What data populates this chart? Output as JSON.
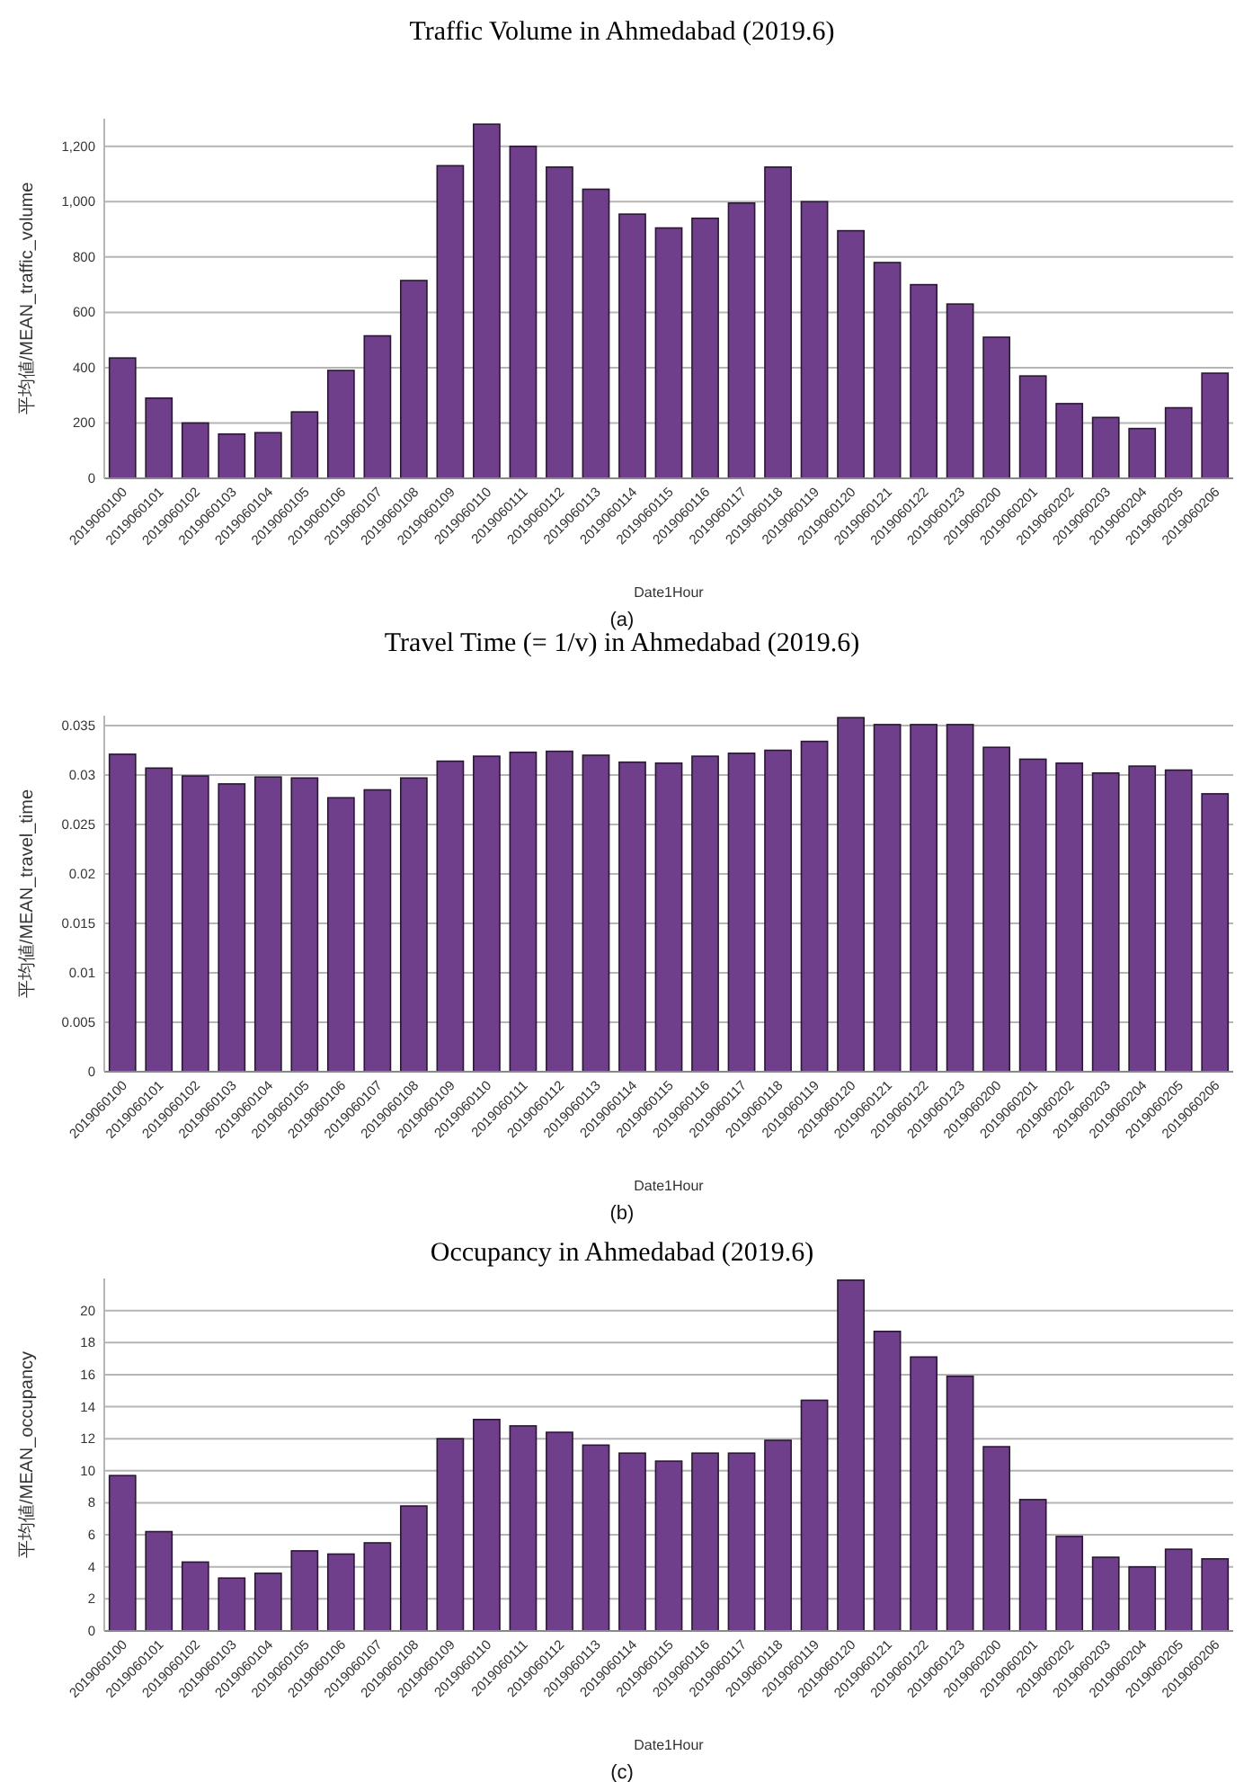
{
  "chart_data": [
    {
      "type": "bar",
      "title": "Traffic Volume in Ahmedabad (2019.6)",
      "xlabel": "Date1Hour",
      "ylabel": "平均値/MEAN_traffic_volume",
      "annotations": [
        "(a)"
      ],
      "grid": "y",
      "color": "#6f3f8b",
      "categories": [
        "2019060100",
        "2019060101",
        "2019060102",
        "2019060103",
        "2019060104",
        "2019060105",
        "2019060106",
        "2019060107",
        "2019060108",
        "2019060109",
        "2019060110",
        "2019060111",
        "2019060112",
        "2019060113",
        "2019060114",
        "2019060115",
        "2019060116",
        "2019060117",
        "2019060118",
        "2019060119",
        "2019060120",
        "2019060121",
        "2019060122",
        "2019060123",
        "2019060200",
        "2019060201",
        "2019060202",
        "2019060203",
        "2019060204",
        "2019060205",
        "2019060206"
      ],
      "values": [
        435,
        290,
        200,
        160,
        165,
        240,
        390,
        515,
        715,
        1130,
        1280,
        1200,
        1125,
        1045,
        955,
        905,
        940,
        995,
        1125,
        1000,
        895,
        780,
        700,
        630,
        510,
        370,
        270,
        220,
        180,
        255,
        380
      ],
      "ylim": [
        0,
        1300
      ],
      "yticks": [
        0,
        200,
        400,
        600,
        800,
        {
          "value": 1000,
          "label": "1,000"
        },
        {
          "value": 1200,
          "label": "1,200"
        }
      ]
    },
    {
      "type": "bar",
      "title": "Travel Time (= 1/v) in Ahmedabad (2019.6)",
      "xlabel": "Date1Hour",
      "ylabel": "平均値/MEAN_travel_time",
      "annotations": [
        "(b)"
      ],
      "grid": "y",
      "color": "#6f3f8b",
      "categories": [
        "2019060100",
        "2019060101",
        "2019060102",
        "2019060103",
        "2019060104",
        "2019060105",
        "2019060106",
        "2019060107",
        "2019060108",
        "2019060109",
        "2019060110",
        "2019060111",
        "2019060112",
        "2019060113",
        "2019060114",
        "2019060115",
        "2019060116",
        "2019060117",
        "2019060118",
        "2019060119",
        "2019060120",
        "2019060121",
        "2019060122",
        "2019060123",
        "2019060200",
        "2019060201",
        "2019060202",
        "2019060203",
        "2019060204",
        "2019060205",
        "2019060206"
      ],
      "values": [
        0.0321,
        0.0307,
        0.0299,
        0.0291,
        0.0298,
        0.0297,
        0.0277,
        0.0285,
        0.0297,
        0.0314,
        0.0319,
        0.0323,
        0.0324,
        0.032,
        0.0313,
        0.0312,
        0.0319,
        0.0322,
        0.0325,
        0.0334,
        0.0358,
        0.0351,
        0.0351,
        0.0351,
        0.0328,
        0.0316,
        0.0312,
        0.0302,
        0.0309,
        0.0305,
        0.0281
      ],
      "ylim": [
        0,
        0.036
      ],
      "yticks": [
        0,
        0.005,
        0.01,
        0.015,
        0.02,
        0.025,
        0.03,
        0.035
      ]
    },
    {
      "type": "bar",
      "title": "Occupancy in Ahmedabad (2019.6)",
      "xlabel": "Date1Hour",
      "ylabel": "平均値/MEAN_occupancy",
      "annotations": [
        "(c)"
      ],
      "grid": "y",
      "color": "#6f3f8b",
      "categories": [
        "2019060100",
        "2019060101",
        "2019060102",
        "2019060103",
        "2019060104",
        "2019060105",
        "2019060106",
        "2019060107",
        "2019060108",
        "2019060109",
        "2019060110",
        "2019060111",
        "2019060112",
        "2019060113",
        "2019060114",
        "2019060115",
        "2019060116",
        "2019060117",
        "2019060118",
        "2019060119",
        "2019060120",
        "2019060121",
        "2019060122",
        "2019060123",
        "2019060200",
        "2019060201",
        "2019060202",
        "2019060203",
        "2019060204",
        "2019060205",
        "2019060206"
      ],
      "values": [
        9.7,
        6.2,
        4.3,
        3.3,
        3.6,
        5.0,
        4.8,
        5.5,
        7.8,
        12.0,
        13.2,
        12.8,
        12.4,
        11.6,
        11.1,
        10.6,
        11.1,
        11.1,
        11.9,
        14.4,
        21.9,
        18.7,
        17.1,
        15.9,
        11.5,
        8.2,
        5.9,
        4.6,
        4.0,
        5.1,
        4.5
      ],
      "ylim": [
        0,
        22
      ],
      "yticks": [
        0,
        2,
        4,
        6,
        8,
        10,
        12,
        14,
        16,
        18,
        20
      ]
    }
  ]
}
